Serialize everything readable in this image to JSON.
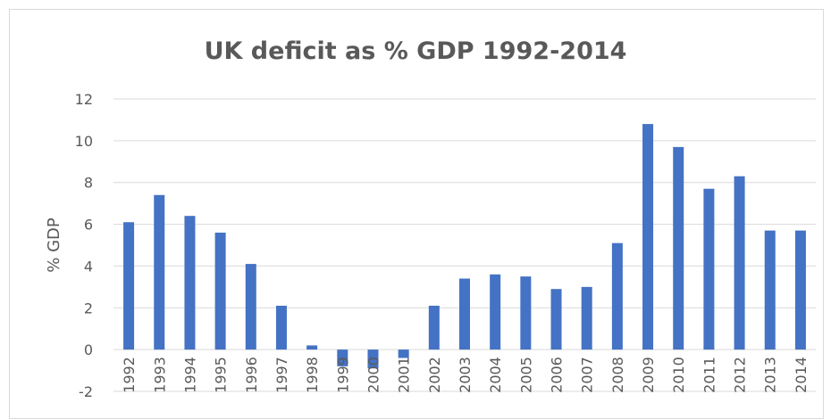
{
  "chart_data": {
    "type": "bar",
    "title": "UK deficit as % GDP 1992-2014",
    "xlabel": "",
    "ylabel": "% GDP",
    "categories": [
      "1992",
      "1993",
      "1994",
      "1995",
      "1996",
      "1997",
      "1998",
      "1999",
      "2000",
      "2001",
      "2002",
      "2003",
      "2004",
      "2005",
      "2006",
      "2007",
      "2008",
      "2009",
      "2010",
      "2011",
      "2012",
      "2013",
      "2014"
    ],
    "values": [
      6.1,
      7.4,
      6.4,
      5.6,
      4.1,
      2.1,
      0.2,
      -0.8,
      -0.9,
      -0.4,
      2.1,
      3.4,
      3.6,
      3.5,
      2.9,
      3.0,
      5.1,
      10.8,
      9.7,
      7.7,
      8.3,
      5.7,
      5.7
    ],
    "ylim": [
      -2,
      12
    ],
    "yticks": [
      -2,
      0,
      2,
      4,
      6,
      8,
      10,
      12
    ],
    "grid": true,
    "legend": "none",
    "bar_color": "#4472c4",
    "grid_color": "#d9d9d9"
  }
}
